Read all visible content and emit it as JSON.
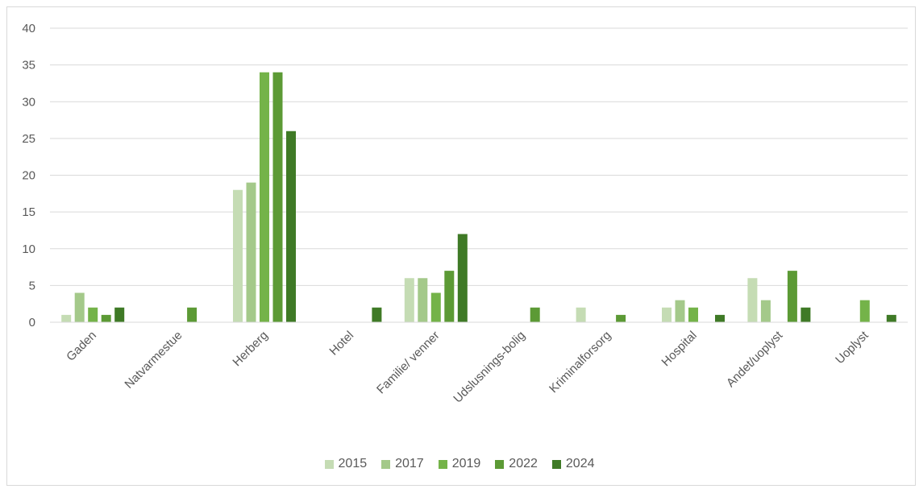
{
  "chart_data": {
    "type": "bar",
    "title": "",
    "xlabel": "",
    "ylabel": "",
    "ylim": [
      0,
      40
    ],
    "yticks": [
      "0",
      "5",
      "10",
      "15",
      "20",
      "25",
      "30",
      "35",
      "40"
    ],
    "grid": true,
    "legend_position": "bottom",
    "categories": [
      "Gaden",
      "Natvarmestue",
      "Herberg",
      "Hotel",
      "Familie/ venner",
      "Udslusnings-bolig",
      "Kriminalforsorg",
      "Hospital",
      "Andet/uoplyst",
      "Uoplyst"
    ],
    "series": [
      {
        "name": "2015",
        "color": "#c5dcb4",
        "values": [
          1,
          0,
          18,
          0,
          6,
          0,
          2,
          2,
          6,
          0
        ]
      },
      {
        "name": "2017",
        "color": "#a4c98a",
        "values": [
          4,
          0,
          19,
          0,
          6,
          0,
          0,
          3,
          3,
          0
        ]
      },
      {
        "name": "2019",
        "color": "#74b349",
        "values": [
          2,
          0,
          34,
          0,
          4,
          0,
          0,
          2,
          0,
          3
        ]
      },
      {
        "name": "2022",
        "color": "#5c9a35",
        "values": [
          1,
          2,
          34,
          0,
          7,
          2,
          1,
          0,
          7,
          0
        ]
      },
      {
        "name": "2024",
        "color": "#3f7a26",
        "values": [
          2,
          0,
          26,
          2,
          12,
          0,
          0,
          1,
          2,
          1
        ]
      }
    ]
  }
}
